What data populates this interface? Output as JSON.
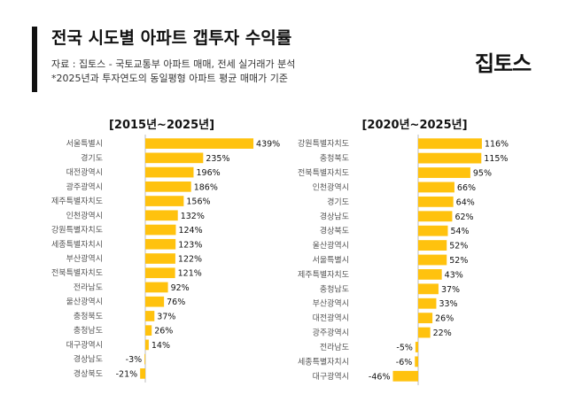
{
  "header": {
    "title": "전국 시도별 아파트 갭투자 수익률",
    "source": "자료 : 집토스 - 국토교통부 아파트 매매, 전세 실거래가 분석",
    "note": "*2025년과 투자연도의 동일평형 아파트 평균 매매가 기준",
    "logo": "집토스"
  },
  "colors": {
    "bar": "#FFC20E",
    "accent": "#111111",
    "axis": "#bdbdbd"
  },
  "chart_data": [
    {
      "type": "bar",
      "orientation": "horizontal",
      "title": "[2015년~2025년]",
      "categories": [
        "서울특별시",
        "경기도",
        "대전광역시",
        "광주광역시",
        "제주특별자치도",
        "인천광역시",
        "강원특별자치도",
        "세종특별자치시",
        "부산광역시",
        "전북특별자치도",
        "전라남도",
        "울산광역시",
        "충청북도",
        "충청남도",
        "대구광역시",
        "경상남도",
        "경상북도"
      ],
      "values": [
        439,
        235,
        196,
        186,
        156,
        132,
        124,
        123,
        122,
        121,
        92,
        76,
        37,
        26,
        14,
        -3,
        -21
      ],
      "value_labels": [
        "439%",
        "235%",
        "196%",
        "186%",
        "156%",
        "132%",
        "124%",
        "123%",
        "122%",
        "121%",
        "92%",
        "76%",
        "37%",
        "26%",
        "14%",
        "-3%",
        "-21%"
      ],
      "unit": "%"
    },
    {
      "type": "bar",
      "orientation": "horizontal",
      "title": "[2020년~2025년]",
      "categories": [
        "강원특별자치도",
        "충청북도",
        "전북특별자치도",
        "인천광역시",
        "경기도",
        "경상남도",
        "경상북도",
        "울산광역시",
        "서울특별시",
        "제주특별자치도",
        "충청남도",
        "부산광역시",
        "대전광역시",
        "광주광역시",
        "전라남도",
        "세종특별자치시",
        "대구광역시"
      ],
      "values": [
        116,
        115,
        95,
        66,
        64,
        62,
        54,
        52,
        52,
        43,
        37,
        33,
        26,
        22,
        -5,
        -6,
        -46
      ],
      "value_labels": [
        "116%",
        "115%",
        "95%",
        "66%",
        "64%",
        "62%",
        "54%",
        "52%",
        "52%",
        "43%",
        "37%",
        "33%",
        "26%",
        "22%",
        "-5%",
        "-6%",
        "-46%"
      ],
      "unit": "%"
    }
  ]
}
